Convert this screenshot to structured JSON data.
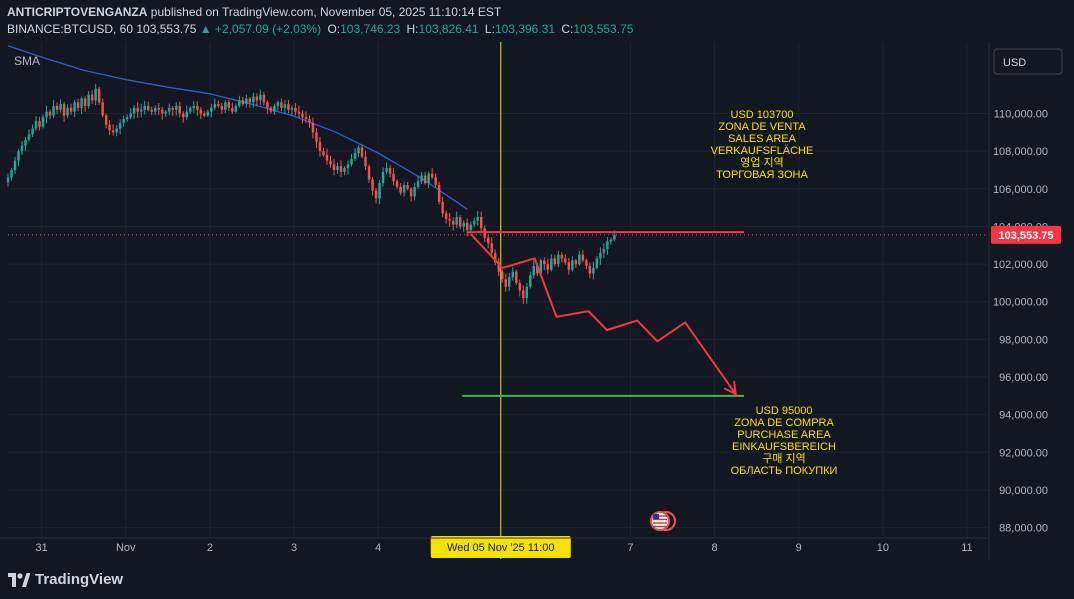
{
  "header": {
    "author": "ANTICRIPTOVENGANZA",
    "published_text": "published on TradingView.com, November 05, 2025 11:10:14 EST",
    "symbol": "BINANCE:BTCUSD, 60",
    "last": "103,553.75",
    "change": "+2,057.09 (+2.03%)",
    "open_label": "O:",
    "open": "103,746.23",
    "high_label": "H:",
    "high": "103,826.41",
    "low_label": "L:",
    "low": "103,396.31",
    "close_label": "C:",
    "close": "103,553.75"
  },
  "indicator_label": "SMA",
  "currency_button": "USD",
  "brand": "TradingView",
  "colors": {
    "background": "#131722",
    "grid": "#1f2330",
    "up": "#26a69a",
    "down": "#ef5350",
    "sma": "#2f5fcf",
    "crosshair": "#f5e200",
    "projection": "#f23645",
    "target": "#4caf50",
    "annotation_text": "#f5e200",
    "price_tag": "#f23645"
  },
  "chart_data": {
    "type": "candlestick",
    "series_name": "BINANCE:BTCUSD",
    "interval": "60",
    "y_axis": {
      "ylim": [
        87500,
        113800
      ],
      "ticks": [
        88000,
        90000,
        92000,
        94000,
        96000,
        98000,
        100000,
        102000,
        104000,
        106000,
        108000,
        110000
      ],
      "tick_labels": [
        "88,000.00",
        "90,000.00",
        "92,000.00",
        "94,000.00",
        "96,000.00",
        "98,000.00",
        "100,000.00",
        "102,000.00",
        "104,000.00",
        "106,000.00",
        "108,000.00",
        "110,000.00"
      ],
      "position": "right"
    },
    "x_axis": {
      "tick_labels": [
        "31",
        "Nov",
        "2",
        "3",
        "4",
        "7",
        "8",
        "9",
        "10",
        "11"
      ],
      "tick_days": [
        -5,
        -4,
        -3,
        -2,
        -1,
        2,
        3,
        4,
        5,
        6
      ],
      "note": "tick_days: days relative to Nov 5 00:00; hidden: '5' and '6' covered by crosshair label"
    },
    "crosshair": {
      "label": "Wed 05 Nov '25   11:00",
      "day": 0.458
    },
    "last_price": {
      "value": 103553.75,
      "label": "103,553.75"
    },
    "candles": {
      "start_day": -5.4,
      "step_day": 0.04167,
      "closes": [
        106600,
        107000,
        107500,
        108000,
        108300,
        108600,
        108900,
        109200,
        109600,
        109300,
        109800,
        110100,
        109900,
        110400,
        110200,
        110500,
        109900,
        110300,
        110100,
        110600,
        110300,
        110800,
        110400,
        111000,
        110700,
        111300,
        110600,
        109900,
        109400,
        109100,
        109000,
        109200,
        109500,
        109700,
        109800,
        110000,
        110300,
        110100,
        110200,
        110400,
        110200,
        110100,
        110300,
        110200,
        110000,
        110100,
        110300,
        110200,
        110400,
        110000,
        109800,
        110100,
        110300,
        110400,
        110200,
        110000,
        109900,
        110100,
        110300,
        110500,
        110400,
        110200,
        110600,
        110300,
        110100,
        110400,
        110700,
        110500,
        110800,
        110600,
        110900,
        110700,
        111000,
        110600,
        110300,
        110100,
        110400,
        110600,
        110300,
        110500,
        110200,
        110300,
        110100,
        110000,
        109800,
        109700,
        109500,
        109000,
        108500,
        108000,
        107800,
        107500,
        107300,
        107000,
        107200,
        106900,
        107100,
        107300,
        107600,
        107900,
        108200,
        107700,
        107200,
        106500,
        105900,
        105500,
        106300,
        106900,
        107100,
        106800,
        106400,
        106100,
        105800,
        106200,
        106000,
        105600,
        106100,
        106400,
        106700,
        106300,
        106800,
        106600,
        106200,
        105300,
        104700,
        104400,
        104300,
        104100,
        104500,
        104000,
        104200,
        103800,
        104100,
        104300,
        104500,
        103900,
        103400,
        103100,
        102600,
        102100,
        101600,
        101200,
        100800,
        101300,
        101600,
        101000,
        100600,
        100200,
        100800,
        101400,
        101900,
        101500,
        102200,
        102000,
        101700,
        102300,
        102000,
        102500,
        102300,
        102100,
        101700,
        102200,
        102000,
        102500,
        102200,
        101900,
        101500,
        101800,
        102300,
        102600,
        102800,
        103200,
        103300,
        103553
      ]
    },
    "sma": {
      "name": "SMA",
      "points": [
        [
          -5.4,
          113600
        ],
        [
          -5.0,
          113000
        ],
        [
          -4.5,
          112300
        ],
        [
          -4.0,
          111800
        ],
        [
          -3.5,
          111400
        ],
        [
          -3.0,
          111050
        ],
        [
          -2.5,
          110500
        ],
        [
          -2.0,
          109850
        ],
        [
          -1.5,
          109000
        ],
        [
          -1.0,
          107900
        ],
        [
          -0.5,
          106600
        ],
        [
          0.0,
          105100
        ],
        [
          0.06,
          104900
        ]
      ]
    },
    "projection": {
      "zigzag": [
        [
          0.1,
          103600
        ],
        [
          0.48,
          101800
        ],
        [
          0.86,
          102300
        ],
        [
          1.12,
          99200
        ],
        [
          1.5,
          99500
        ],
        [
          1.72,
          98500
        ],
        [
          2.08,
          99000
        ],
        [
          2.32,
          97900
        ],
        [
          2.65,
          98900
        ],
        [
          3.25,
          95100
        ]
      ],
      "resistance_line": {
        "price": 103700,
        "from_day": 0.06,
        "to_day": 3.35
      },
      "support_line": {
        "price": 95000,
        "from_day": 0.0,
        "to_day": 3.35
      }
    },
    "annotations": [
      {
        "id": "sell",
        "lines": [
          "USD 103700",
          "ZONA DE VENTA",
          "SALES AREA",
          "VERKAUFSFLÄCHE",
          "영업 지역",
          "ТОРГОВАЯ ЗОНА"
        ]
      },
      {
        "id": "buy",
        "lines": [
          "USD 95000",
          "ZONA DE COMPRA",
          "PURCHASE AREA",
          "EINKAUFSBEREICH",
          "구매 지역",
          "ОБЛАСТЬ ПОКУПКИ"
        ]
      }
    ]
  }
}
